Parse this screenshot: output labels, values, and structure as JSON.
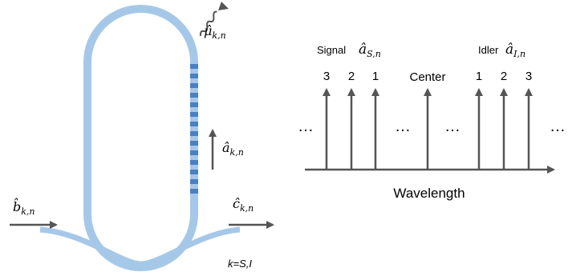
{
  "ring": {
    "colors": {
      "waveguide": "#a6c8e8",
      "grating": "#4a7fc1",
      "arrow": "#555555"
    },
    "labels": {
      "mu": {
        "hat": "μ̂",
        "sub": "k,n"
      },
      "a": {
        "hat": "â",
        "sub": "k,n"
      },
      "b": {
        "hat": "b̂",
        "sub": "k,n"
      },
      "c": {
        "hat": "ĉ",
        "sub": "k,n"
      },
      "k_note": "k=S,I"
    }
  },
  "spectrum": {
    "signal_label": "Signal",
    "signal_op": {
      "hat": "â",
      "sub": "S,n"
    },
    "idler_label": "Idler",
    "idler_op": {
      "hat": "â",
      "sub": "I,n"
    },
    "center_label": "Center",
    "signal_numbers": [
      "3",
      "2",
      "1"
    ],
    "idler_numbers": [
      "1",
      "2",
      "3"
    ],
    "ellipsis": "…",
    "axis_label": "Wavelength"
  }
}
